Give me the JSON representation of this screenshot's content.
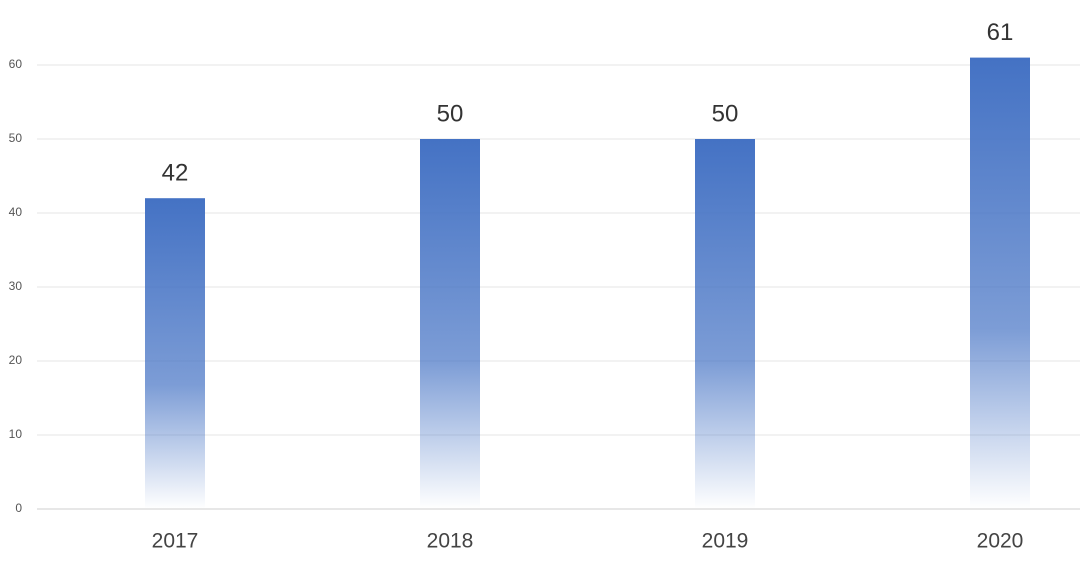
{
  "chart_data": {
    "type": "bar",
    "categories": [
      "2017",
      "2018",
      "2019",
      "2020"
    ],
    "values": [
      42,
      50,
      50,
      61
    ],
    "color": "#4472c4",
    "ylim": [
      0,
      60
    ],
    "yticks": [
      0,
      10,
      20,
      30,
      40,
      50,
      60
    ],
    "grid": true
  }
}
